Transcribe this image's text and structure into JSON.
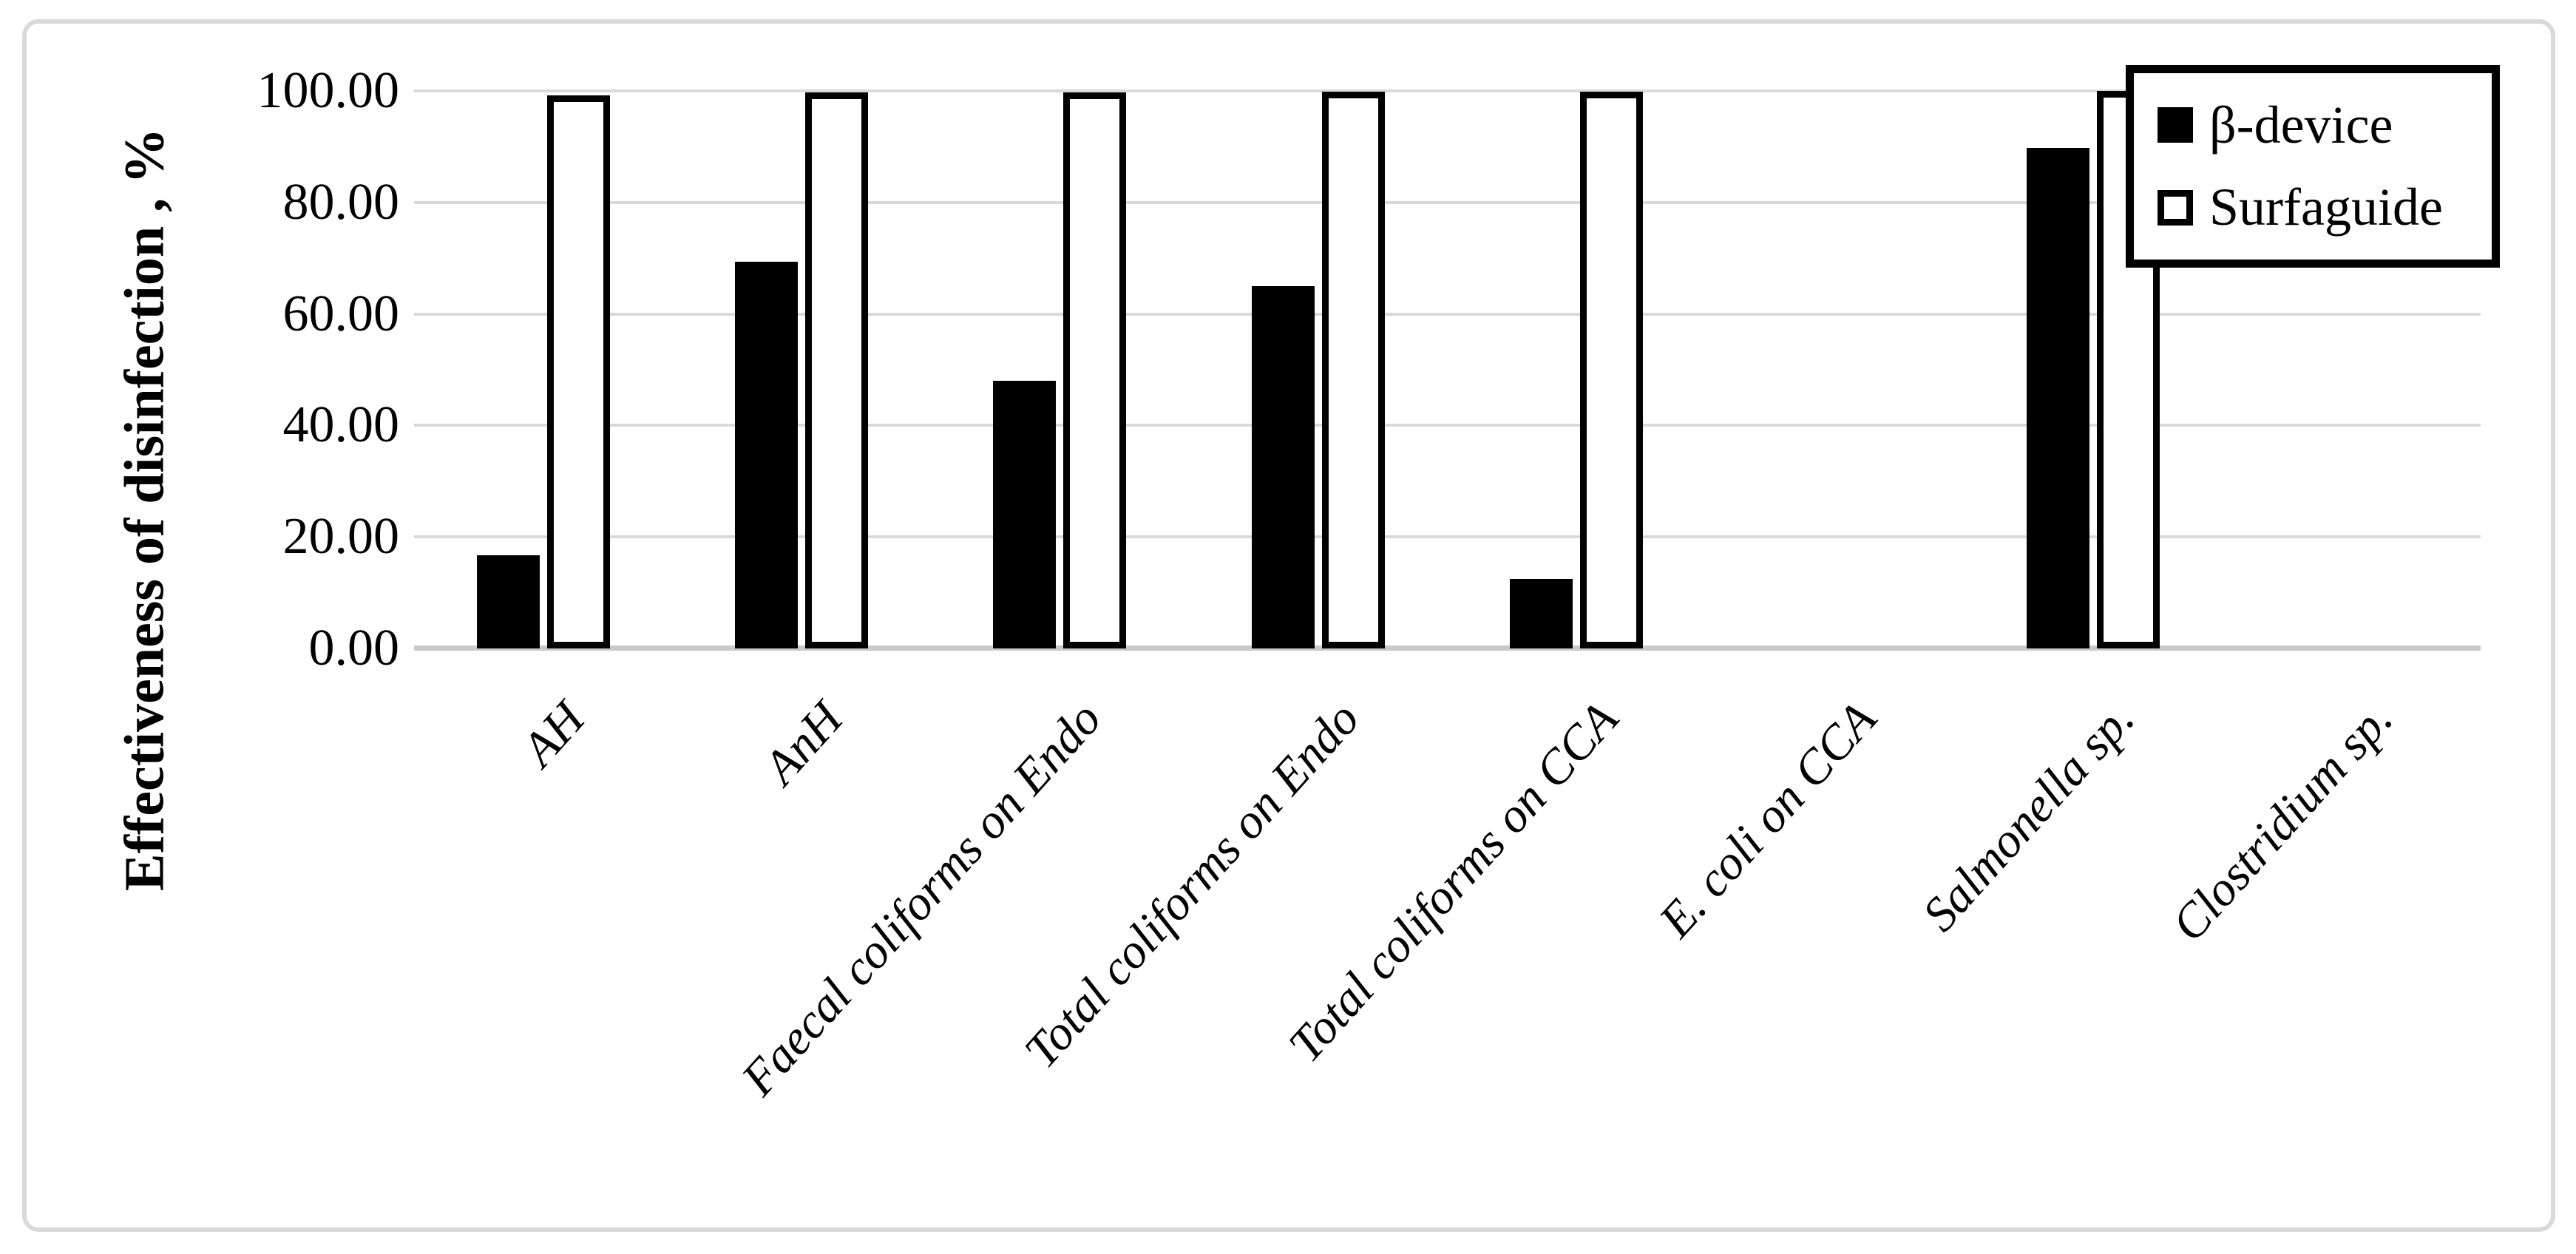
{
  "chart_data": {
    "type": "bar",
    "title": "",
    "xlabel": "",
    "ylabel": "Effectiveness of disinfection , %",
    "categories": [
      "AH",
      "AnH",
      "Faecal coliforms on Endo",
      "Total coliforms on Endo",
      "Total coliforms on CCA",
      "E. coli on CCA",
      "Salmonella sp.",
      "Clostridium sp."
    ],
    "series": [
      {
        "name": "β-device",
        "style": "filled-black",
        "values": [
          16.7,
          69.3,
          48.0,
          65.0,
          12.5,
          0.0,
          89.8,
          0.0
        ]
      },
      {
        "name": "Surfaguide",
        "style": "outlined-white",
        "values": [
          99.2,
          99.7,
          99.8,
          99.9,
          99.9,
          0.0,
          100.0,
          0.0
        ]
      }
    ],
    "ylim": [
      0,
      100
    ],
    "ytick_labels": [
      "0.00",
      "20.00",
      "40.00",
      "60.00",
      "80.00",
      "100.00"
    ],
    "grid": true,
    "legend_position": "top-right",
    "category_label_rotation_deg": 48,
    "colors": {
      "bar_filled": "#000000",
      "bar_outline": "#000000",
      "bar_white_fill": "#ffffff",
      "gridline": "#d9d9d9",
      "axis_line": "#c9c9c9",
      "frame_border": "#d9d9d9",
      "text": "#000000",
      "background": "#ffffff"
    }
  },
  "legend": {
    "items": [
      {
        "label": "β-device",
        "swatch": "filled-black-square"
      },
      {
        "label": "Surfaguide",
        "swatch": "outlined-white-square"
      }
    ]
  }
}
